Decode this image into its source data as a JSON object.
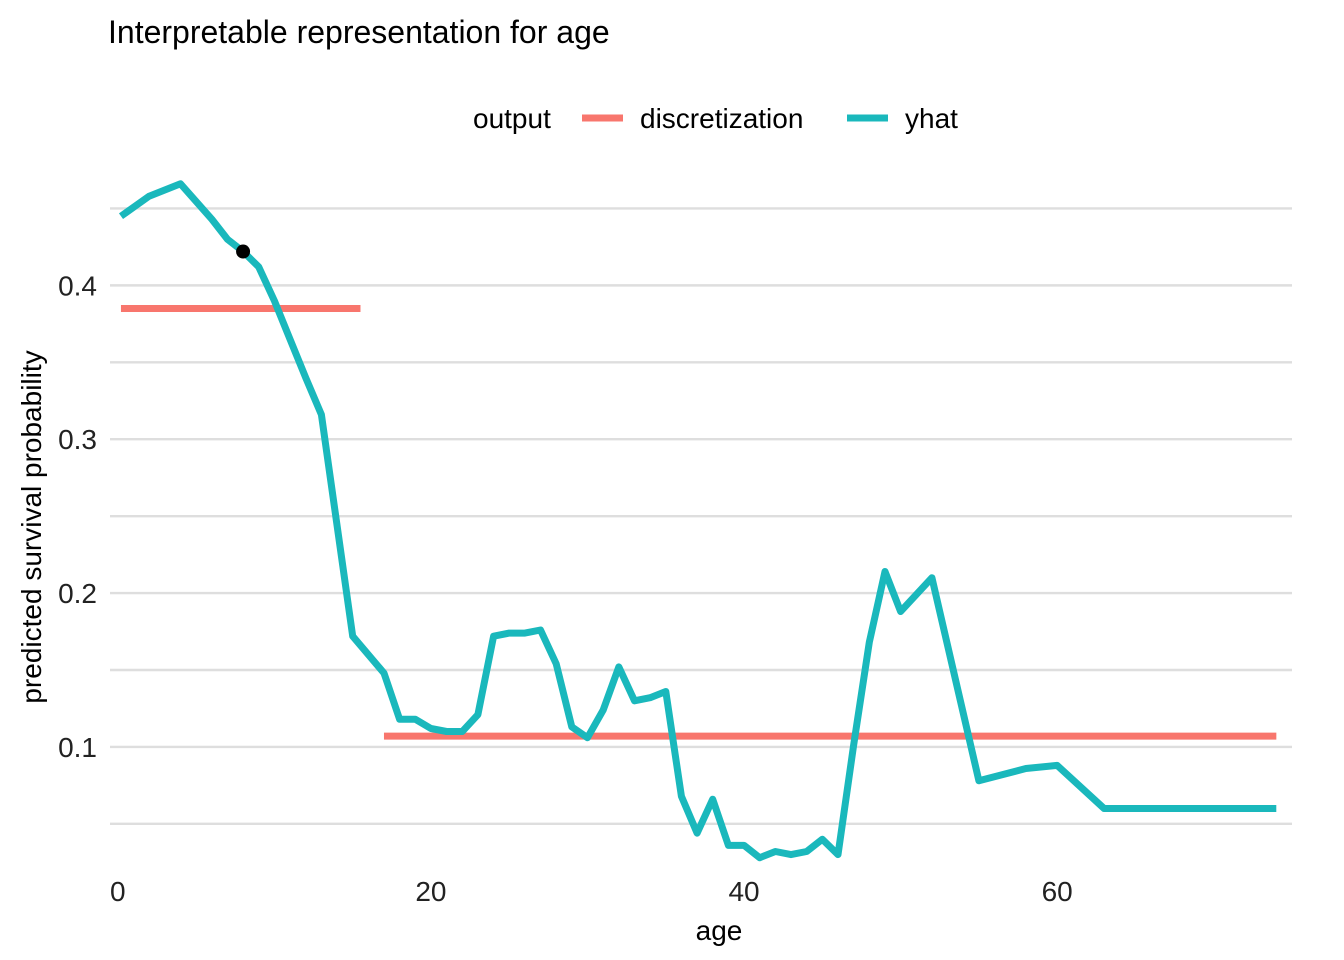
{
  "chart_data": {
    "type": "line",
    "title": "Interpretable representation for age",
    "xlabel": "age",
    "ylabel": "predicted survival probability",
    "xlim": [
      -0.5,
      75
    ],
    "ylim": [
      0.02,
      0.475
    ],
    "x_ticks": [
      0,
      20,
      40,
      60
    ],
    "y_ticks": [
      0.1,
      0.2,
      0.3,
      0.4
    ],
    "grid": true,
    "legend": {
      "position": "top",
      "title": "output",
      "entries": [
        "discretization",
        "yhat"
      ]
    },
    "colors": {
      "discretization": "#F8766D",
      "yhat": "#1AB8BC",
      "point": "#000000"
    },
    "series": [
      {
        "name": "yhat",
        "x": [
          0.2,
          2,
          4,
          6,
          7,
          8,
          9,
          10,
          11,
          12,
          13,
          15,
          17,
          18,
          19,
          20,
          21,
          22,
          23,
          24,
          25,
          26,
          27,
          28,
          29,
          30,
          31,
          32,
          33,
          34,
          35,
          36,
          37,
          38,
          39,
          40,
          41,
          42,
          43,
          44,
          45,
          46,
          47,
          48,
          49,
          50,
          52,
          55,
          58,
          60,
          63,
          66,
          70,
          74
        ],
        "y": [
          0.445,
          0.458,
          0.466,
          0.443,
          0.43,
          0.422,
          0.412,
          0.39,
          0.365,
          0.34,
          0.316,
          0.172,
          0.148,
          0.118,
          0.118,
          0.112,
          0.11,
          0.11,
          0.121,
          0.172,
          0.174,
          0.174,
          0.176,
          0.154,
          0.113,
          0.106,
          0.124,
          0.152,
          0.13,
          0.132,
          0.136,
          0.068,
          0.044,
          0.066,
          0.036,
          0.036,
          0.028,
          0.032,
          0.03,
          0.032,
          0.04,
          0.03,
          0.101,
          0.168,
          0.214,
          0.188,
          0.21,
          0.078,
          0.086,
          0.088,
          0.06,
          0.06,
          0.06,
          0.06
        ]
      },
      {
        "name": "discretization",
        "segments": [
          {
            "x": [
              0.2,
              15.5
            ],
            "y": 0.385
          },
          {
            "x": [
              17,
              74
            ],
            "y": 0.107
          }
        ]
      }
    ],
    "point": {
      "x": 8,
      "y": 0.422
    }
  }
}
